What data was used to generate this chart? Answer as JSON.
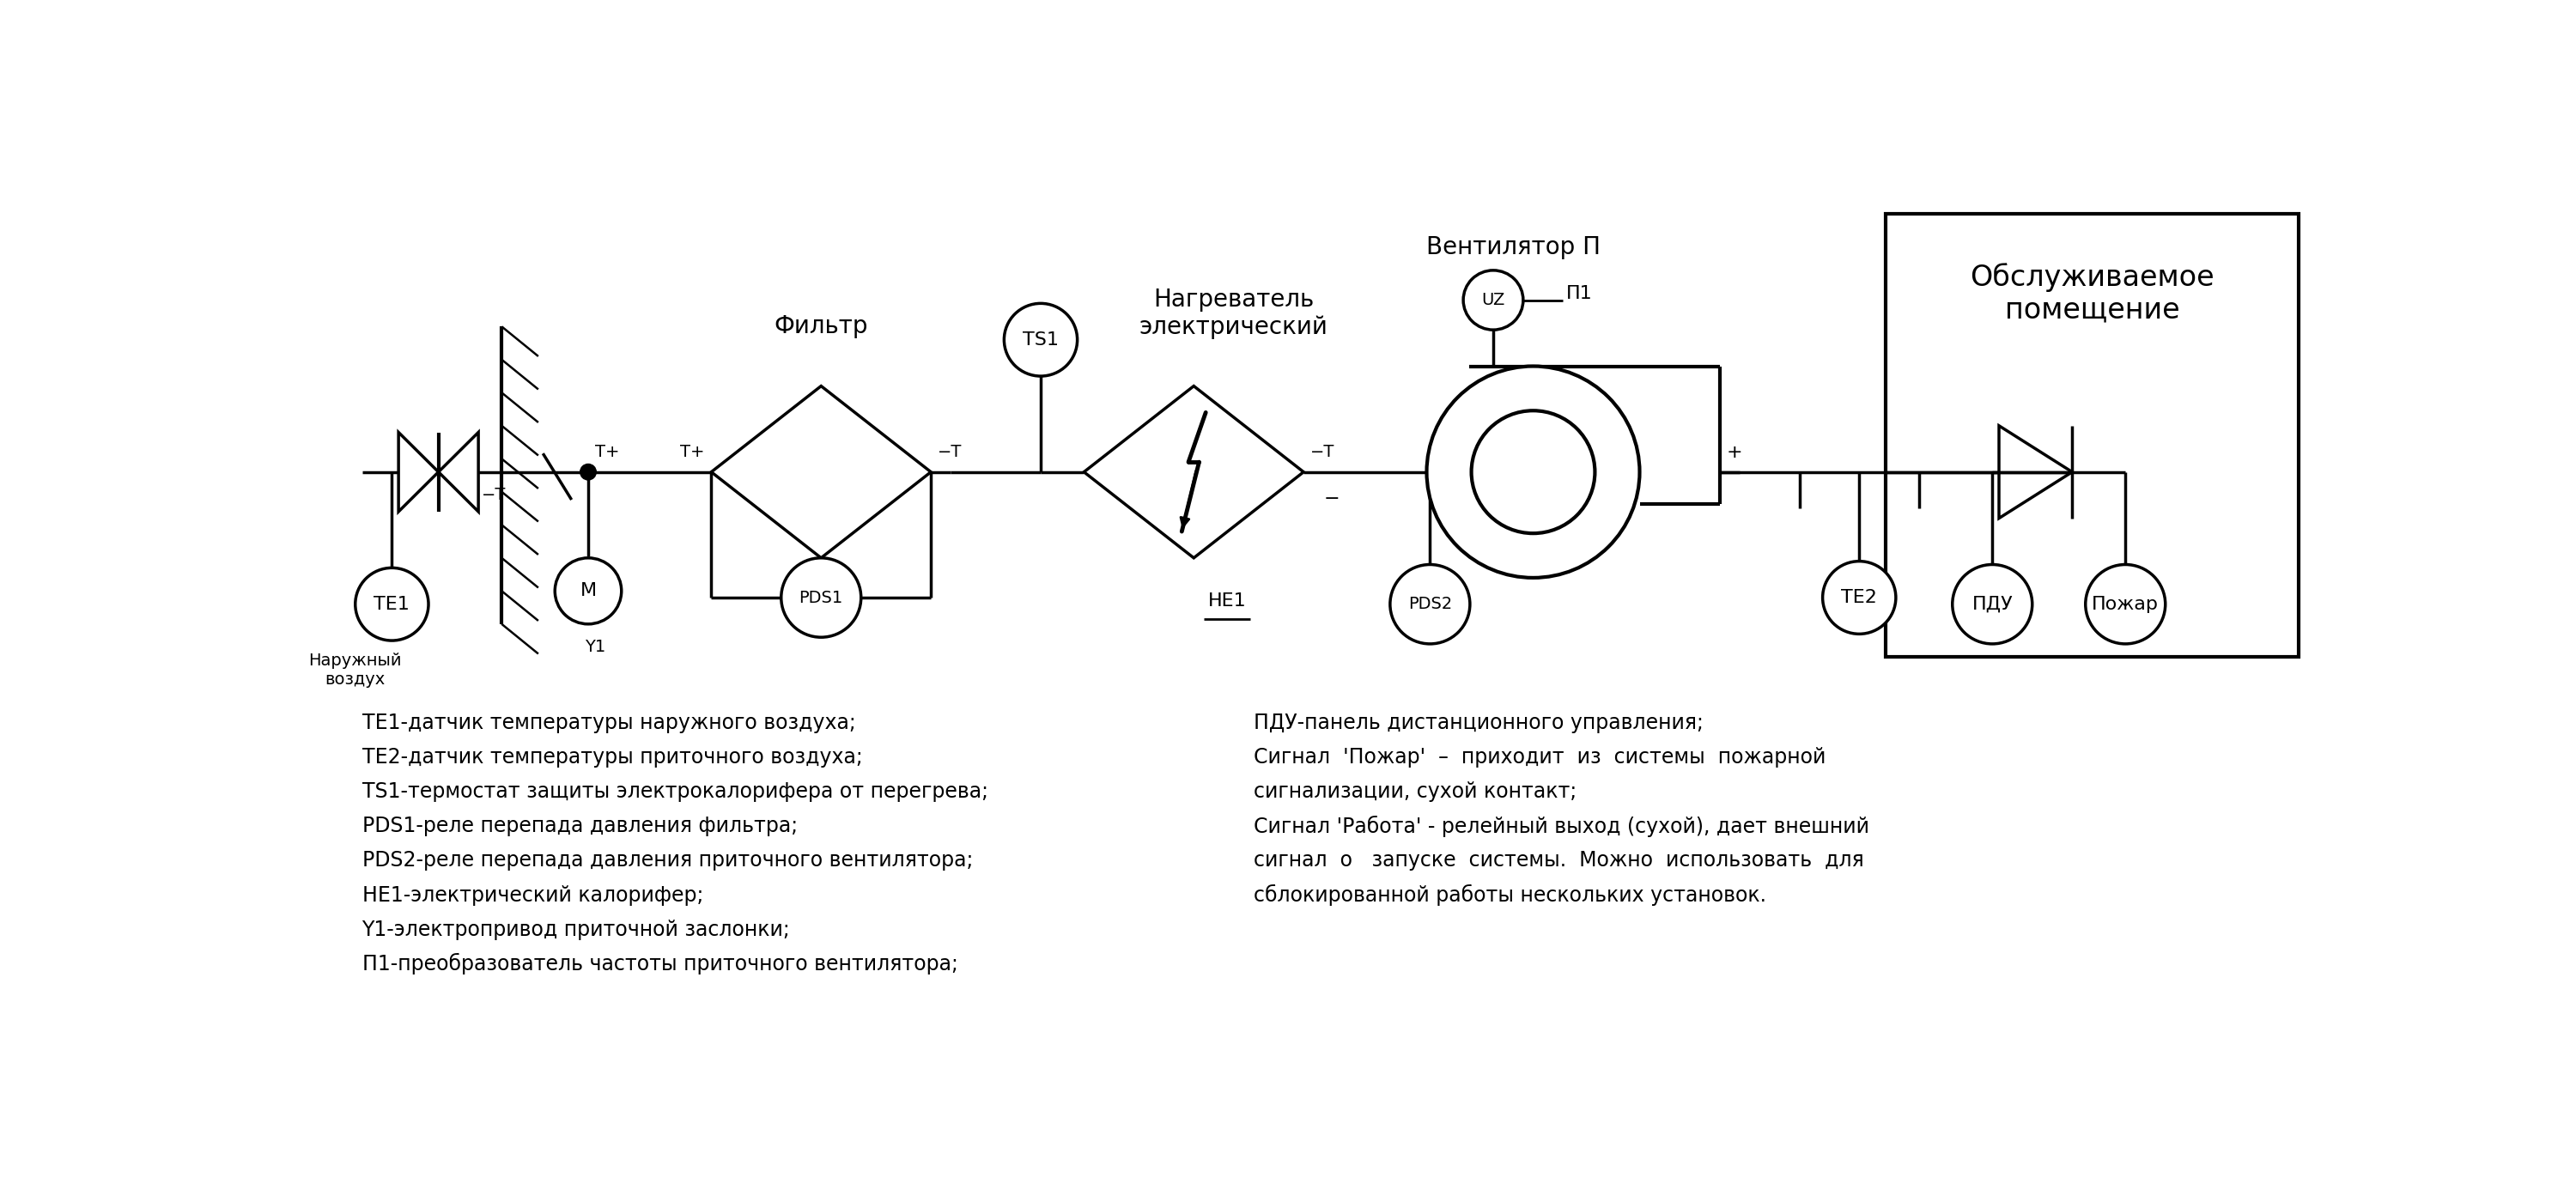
{
  "bg_color": "#ffffff",
  "line_color": "#000000",
  "title_box": "Обслуживаемое\nпомещение",
  "label_naruzhny": "Наружный\nвоздух",
  "label_te1": "TE1",
  "label_y1": "Y1",
  "label_m": "M",
  "label_filtr": "Фильтр",
  "label_pds1": "PDS1",
  "label_ts1": "TS1",
  "label_nagrev": "Нагреватель\nэлектрический",
  "label_he1": "HE1",
  "label_vent": "Вентилятор П",
  "label_uz": "UZ",
  "label_p1": "П1",
  "label_pds2": "PDS2",
  "label_te2": "TE2",
  "label_pdu": "ПДУ",
  "label_pozhar": "Пожар",
  "legend_lines": [
    "TE1-датчик температуры наружного воздуха;",
    "TE2-датчик температуры приточного воздуха;",
    "TS1-термостат защиты электрокалорифера от перегрева;",
    "PDS1-реле перепада давления фильтра;",
    "PDS2-реле перепада давления приточного вентилятора;",
    "HE1-электрический калорифер;",
    "Y1-электропривод приточной заслонки;",
    "П1-преобразователь частоты приточного вентилятора;"
  ],
  "legend_lines_right": [
    "ПДУ-панель дистанционного управления;",
    "Сигнал  'Пожар'  –  приходит  из  системы  пожарной",
    "сигнализации, сухой контакт;",
    "Сигнал 'Работа' - релейный выход (сухой), дает внешний",
    "сигнал  о   запуске  системы.  Можно  использовать  для",
    "сблокированной работы нескольких установок."
  ]
}
